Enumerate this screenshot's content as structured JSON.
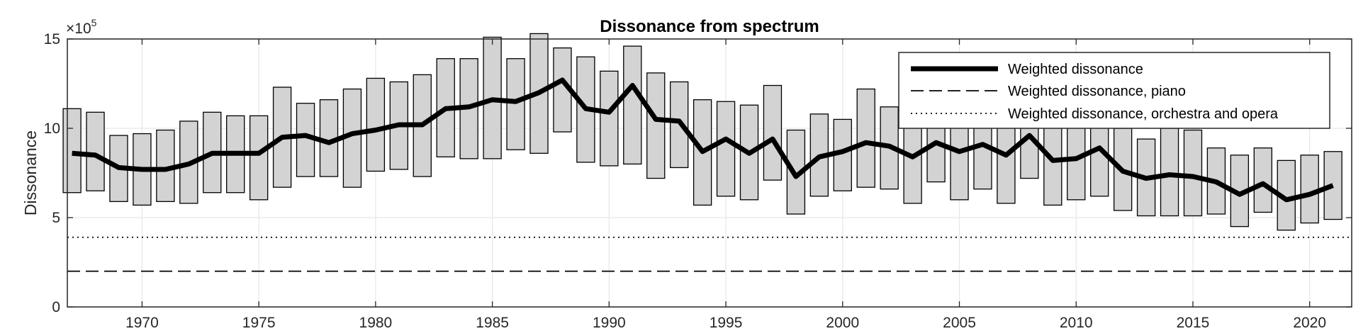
{
  "chart_data": {
    "type": "line",
    "title": "Dissonance from spectrum",
    "ylabel": "Dissonance",
    "xlabel": "",
    "y_multiplier": "×10",
    "y_exponent": "5",
    "xlim": [
      1966.8,
      2021.8
    ],
    "ylim": [
      0,
      15
    ],
    "x_ticks": [
      1970,
      1975,
      1980,
      1985,
      1990,
      1995,
      2000,
      2005,
      2010,
      2015,
      2020
    ],
    "y_ticks": [
      0,
      5,
      10,
      15
    ],
    "grid": true,
    "legend_position": "top-right",
    "years": [
      1967,
      1968,
      1969,
      1970,
      1971,
      1972,
      1973,
      1974,
      1975,
      1976,
      1977,
      1978,
      1979,
      1980,
      1981,
      1982,
      1983,
      1984,
      1985,
      1986,
      1987,
      1988,
      1989,
      1990,
      1991,
      1992,
      1993,
      1994,
      1995,
      1996,
      1997,
      1998,
      1999,
      2000,
      2001,
      2002,
      2003,
      2004,
      2005,
      2006,
      2007,
      2008,
      2009,
      2010,
      2011,
      2012,
      2013,
      2014,
      2015,
      2016,
      2017,
      2018,
      2019,
      2020,
      2021
    ],
    "box_low": [
      6.4,
      6.5,
      5.9,
      5.7,
      5.9,
      5.8,
      6.4,
      6.4,
      6.0,
      6.7,
      7.3,
      7.3,
      6.7,
      7.6,
      7.7,
      7.3,
      8.4,
      8.3,
      8.3,
      8.8,
      8.6,
      9.8,
      8.1,
      7.9,
      8.0,
      7.2,
      7.8,
      5.7,
      6.2,
      6.0,
      7.1,
      5.2,
      6.2,
      6.5,
      6.7,
      6.6,
      5.8,
      7.0,
      6.0,
      6.6,
      5.8,
      7.2,
      5.7,
      6.0,
      6.2,
      5.4,
      5.1,
      5.1,
      5.1,
      5.2,
      4.5,
      5.3,
      4.3,
      4.7,
      4.9
    ],
    "box_high": [
      11.1,
      10.9,
      9.6,
      9.7,
      9.9,
      10.4,
      10.9,
      10.7,
      10.7,
      12.3,
      11.4,
      11.6,
      12.2,
      12.8,
      12.6,
      13.0,
      13.9,
      13.9,
      15.1,
      13.9,
      15.3,
      14.5,
      14.0,
      13.2,
      14.6,
      13.1,
      12.6,
      11.6,
      11.5,
      11.3,
      12.4,
      9.9,
      10.8,
      10.5,
      12.2,
      11.2,
      12.0,
      12.3,
      12.5,
      12.3,
      12.0,
      12.9,
      11.8,
      12.3,
      11.9,
      10.0,
      9.4,
      10.0,
      9.9,
      8.9,
      8.5,
      8.9,
      8.2,
      8.5,
      8.7
    ],
    "series": [
      {
        "name": "Weighted dissonance",
        "style": "solid-thick",
        "values": [
          8.6,
          8.5,
          7.8,
          7.7,
          7.7,
          8.0,
          8.6,
          8.6,
          8.6,
          9.5,
          9.6,
          9.2,
          9.7,
          9.9,
          10.2,
          10.2,
          11.1,
          11.2,
          11.6,
          11.5,
          12.0,
          12.7,
          11.1,
          10.9,
          12.4,
          10.5,
          10.4,
          8.7,
          9.4,
          8.6,
          9.4,
          7.3,
          8.4,
          8.7,
          9.2,
          9.0,
          8.4,
          9.2,
          8.7,
          9.1,
          8.5,
          9.6,
          8.2,
          8.3,
          8.9,
          7.6,
          7.2,
          7.4,
          7.3,
          7.0,
          6.3,
          6.9,
          6.0,
          6.3,
          6.8
        ]
      },
      {
        "name": "Weighted dissonance, piano",
        "style": "dashed",
        "value": 2.0
      },
      {
        "name": "Weighted dissonance, orchestra and opera",
        "style": "dotted",
        "value": 3.9
      }
    ],
    "colors": {
      "box_fill": "#d3d3d3",
      "box_edge": "#000000",
      "line": "#000000",
      "grid": "#e6e6e6",
      "axis": "#262626"
    }
  }
}
